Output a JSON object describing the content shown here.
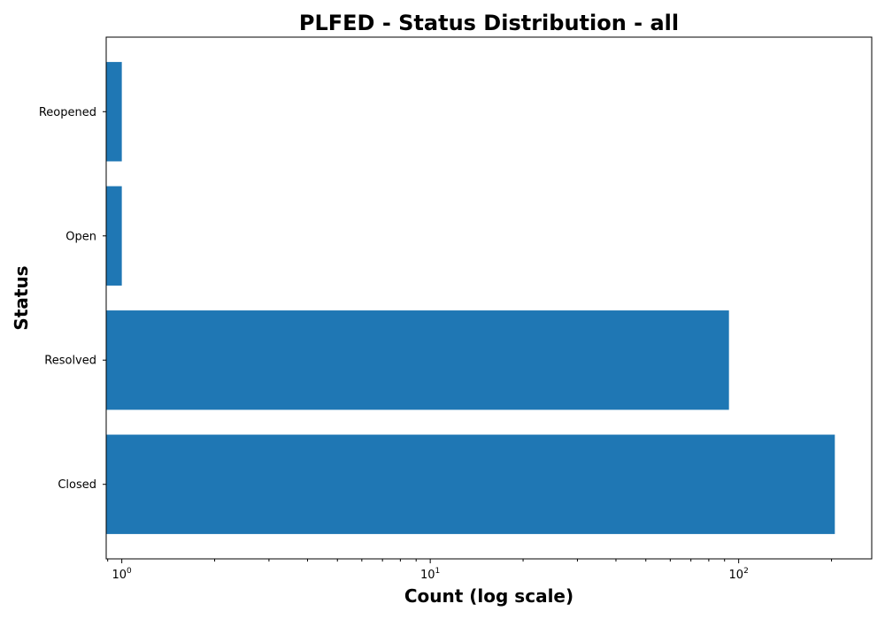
{
  "chart_data": {
    "type": "bar",
    "orientation": "horizontal",
    "title": "PLFED - Status Distribution - all",
    "xlabel": "Count (log scale)",
    "ylabel": "Status",
    "xscale": "log",
    "xlim": [
      0.89,
      270
    ],
    "categories": [
      "Closed",
      "Resolved",
      "Open",
      "Reopened"
    ],
    "values": [
      205,
      93,
      1,
      1
    ],
    "x_ticks": [
      {
        "value": 1,
        "base": "10",
        "exp": "0"
      },
      {
        "value": 10,
        "base": "10",
        "exp": "1"
      },
      {
        "value": 100,
        "base": "10",
        "exp": "2"
      }
    ],
    "bar_color": "#1f77b4",
    "grid": false,
    "legend": "none"
  }
}
